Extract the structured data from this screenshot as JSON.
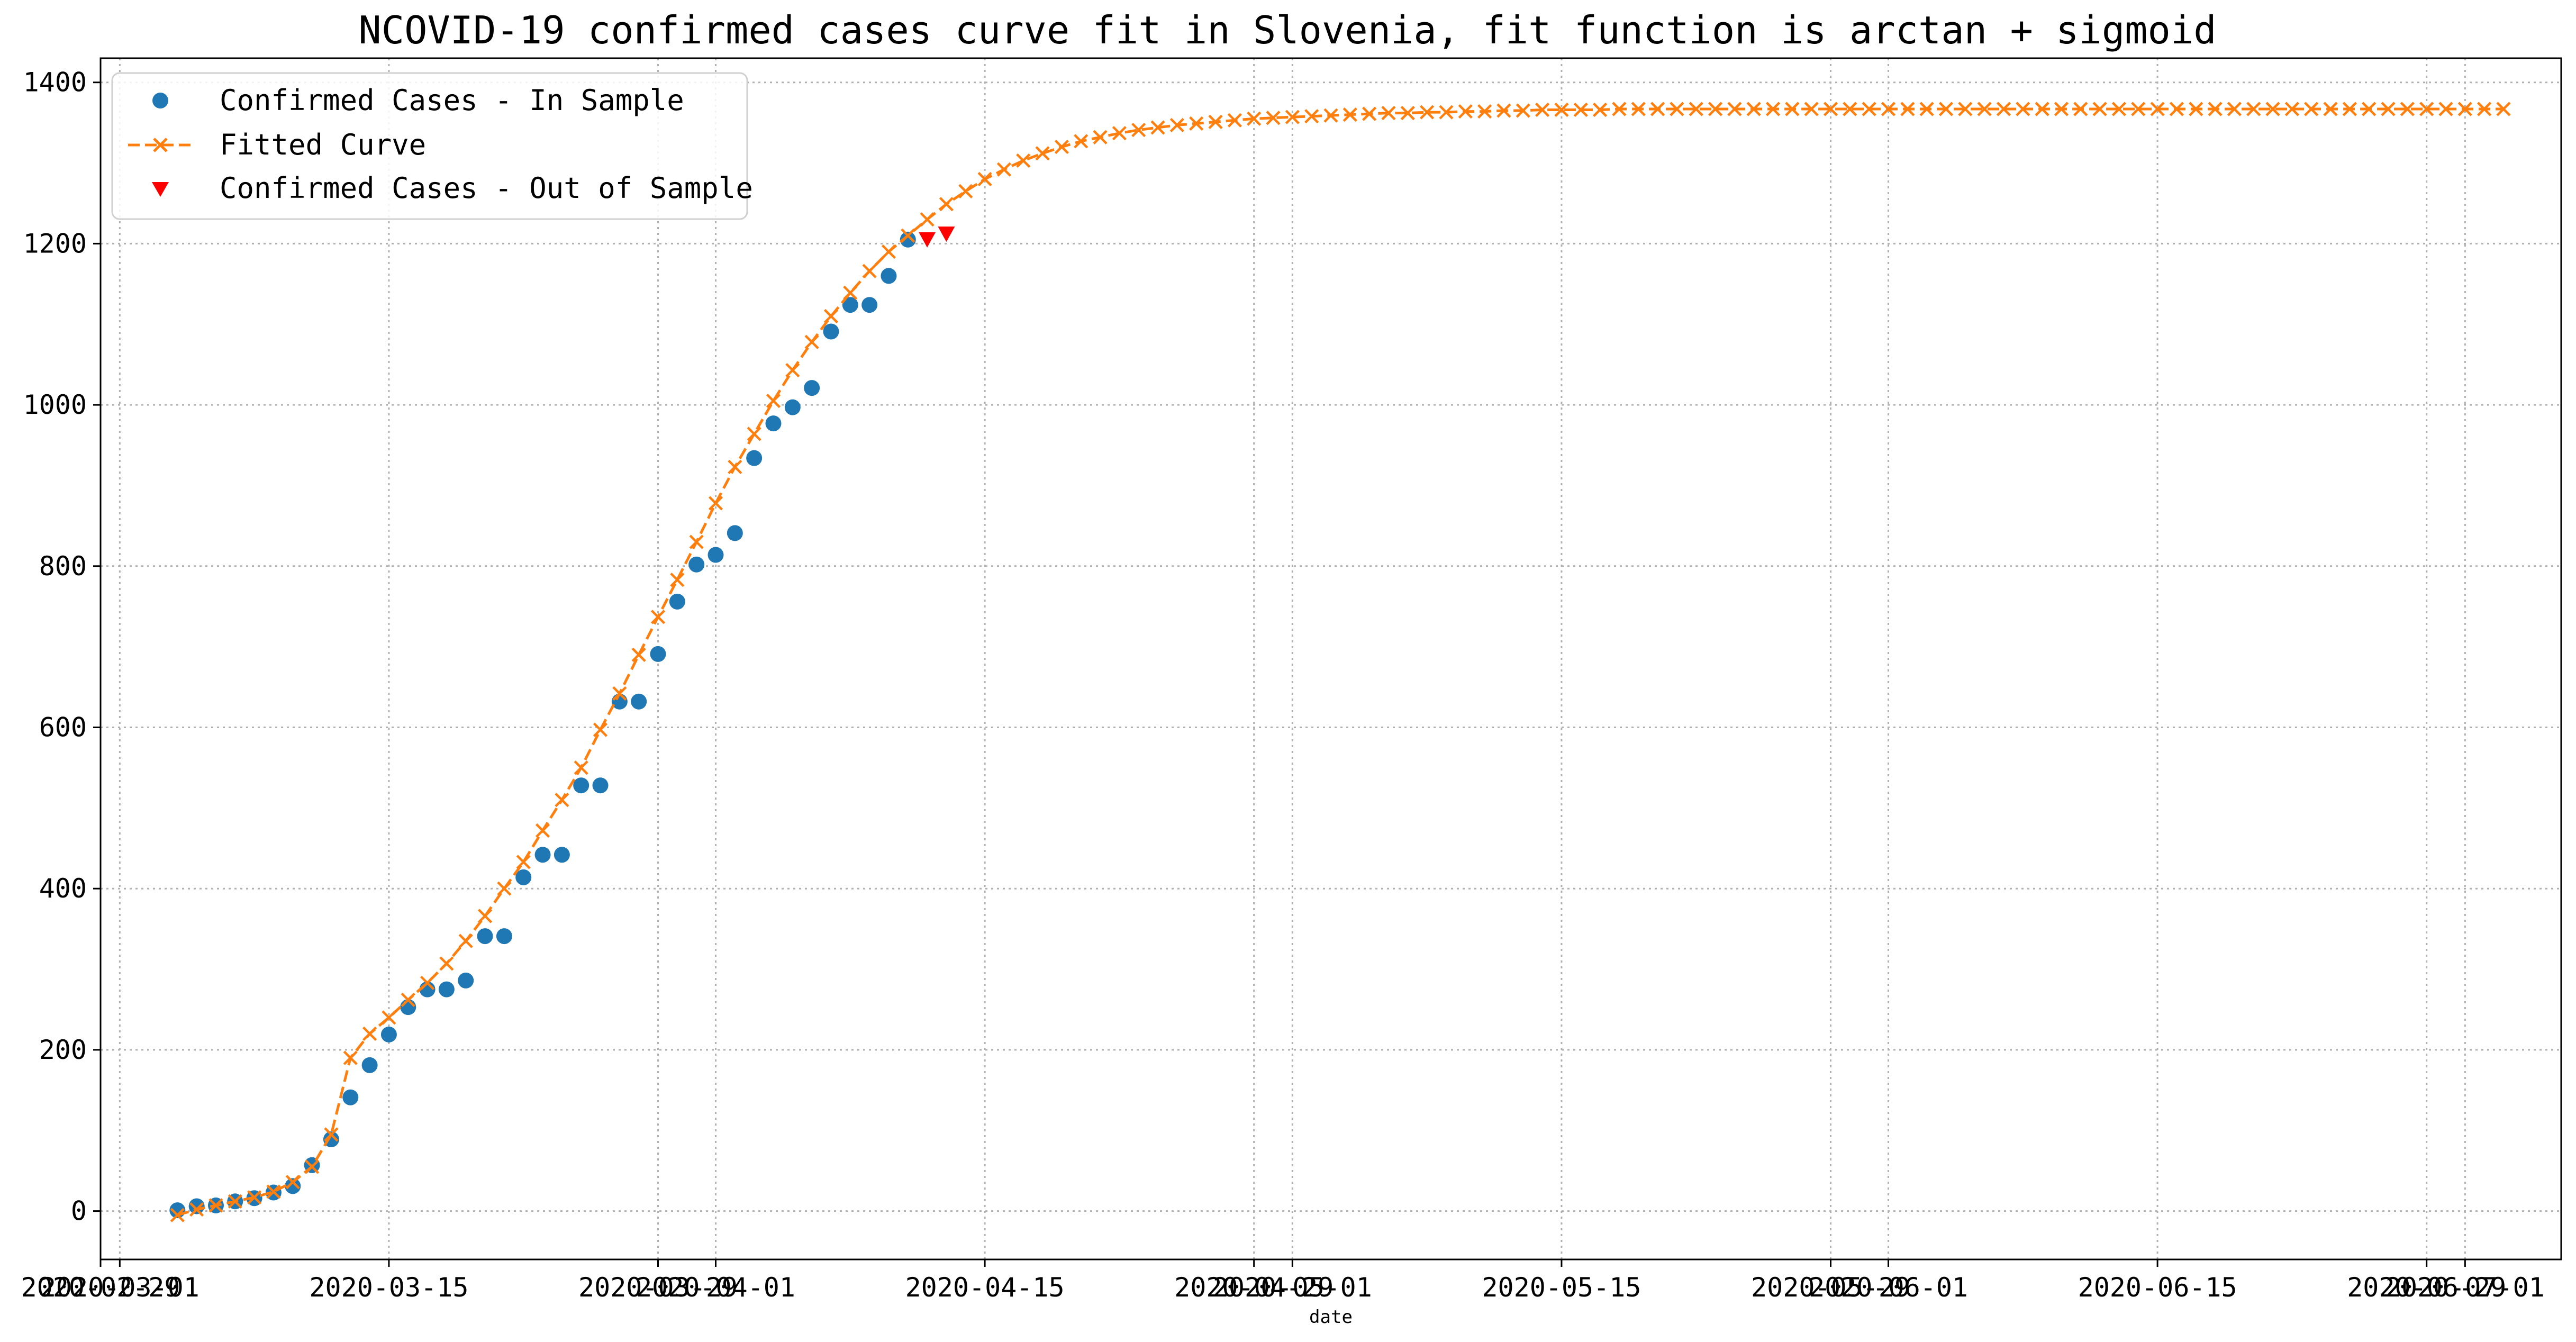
{
  "chart_data": {
    "type": "line",
    "title": "NCOVID-19 confirmed cases curve fit in Slovenia, fit function is arctan + sigmoid",
    "xlabel": "date",
    "ylabel": "",
    "x_start_date": "2020-03-04",
    "xlim": [
      "2020-02-29",
      "2020-07-06"
    ],
    "ylim": [
      -60,
      1430
    ],
    "yticks": [
      0,
      200,
      400,
      600,
      800,
      1000,
      1200,
      1400
    ],
    "xtick_labels": [
      {
        "date": "2020-02-29",
        "label": "2020-02-29"
      },
      {
        "date": "2020-03-01",
        "label": "2020-03-01"
      },
      {
        "date": "2020-03-15",
        "label": "2020-03-15"
      },
      {
        "date": "2020-03-29",
        "label": "2020-03-29"
      },
      {
        "date": "2020-04-01",
        "label": "2020-04-01"
      },
      {
        "date": "2020-04-15",
        "label": "2020-04-15"
      },
      {
        "date": "2020-04-29",
        "label": "2020-04-29"
      },
      {
        "date": "2020-05-01",
        "label": "2020-05-01"
      },
      {
        "date": "2020-05-15",
        "label": "2020-05-15"
      },
      {
        "date": "2020-05-29",
        "label": "2020-05-29"
      },
      {
        "date": "2020-06-01",
        "label": "2020-06-01"
      },
      {
        "date": "2020-06-15",
        "label": "2020-06-15"
      },
      {
        "date": "2020-06-29",
        "label": "2020-06-29"
      },
      {
        "date": "2020-07-01",
        "label": "2020-07-01"
      }
    ],
    "grid": true,
    "legend_position": "top-left",
    "series": [
      {
        "name": "Confirmed Cases - In Sample",
        "marker": "circle",
        "color": "#1f77b4",
        "x_start": "2020-03-04",
        "values": [
          1,
          6,
          7,
          12,
          16,
          23,
          31,
          57,
          89,
          141,
          181,
          219,
          253,
          275,
          275,
          286,
          341,
          341,
          414,
          442,
          442,
          528,
          528,
          632,
          632,
          691,
          756,
          802,
          814,
          841,
          934,
          977,
          997,
          1021,
          1091,
          1124,
          1124,
          1160,
          1205
        ]
      },
      {
        "name": "Fitted Curve",
        "marker": "x",
        "linestyle": "dashed",
        "color": "#ff7f0e",
        "x_start": "2020-03-04",
        "values": [
          -5,
          2,
          7,
          12,
          17,
          24,
          36,
          55,
          95,
          190,
          220,
          240,
          262,
          283,
          307,
          335,
          366,
          400,
          433,
          472,
          510,
          550,
          597,
          642,
          690,
          737,
          783,
          830,
          878,
          923,
          964,
          1005,
          1043,
          1078,
          1110,
          1139,
          1166,
          1190,
          1210,
          1230,
          1249,
          1265,
          1280,
          1292,
          1303,
          1312,
          1320,
          1327,
          1332,
          1337,
          1341,
          1344,
          1347,
          1349,
          1351,
          1353,
          1355,
          1356,
          1357,
          1358,
          1359,
          1360,
          1361,
          1362,
          1362,
          1363,
          1363,
          1364,
          1364,
          1365,
          1365,
          1366,
          1366,
          1366,
          1366,
          1367,
          1367,
          1367,
          1367,
          1367,
          1367,
          1367,
          1367,
          1367,
          1367,
          1367,
          1367,
          1367,
          1367,
          1367,
          1367,
          1367,
          1367,
          1367,
          1367,
          1367,
          1367,
          1367,
          1367,
          1367,
          1367,
          1367,
          1367,
          1367,
          1367,
          1367,
          1367,
          1367,
          1367,
          1367,
          1367,
          1367,
          1367,
          1367,
          1367,
          1367,
          1367,
          1367,
          1367,
          1367,
          1367,
          1367
        ]
      },
      {
        "name": "Confirmed Cases - Out of Sample",
        "marker": "triangle-down",
        "color": "#ff0000",
        "x_start": "2020-04-12",
        "values": [
          1205,
          1212
        ]
      }
    ]
  }
}
